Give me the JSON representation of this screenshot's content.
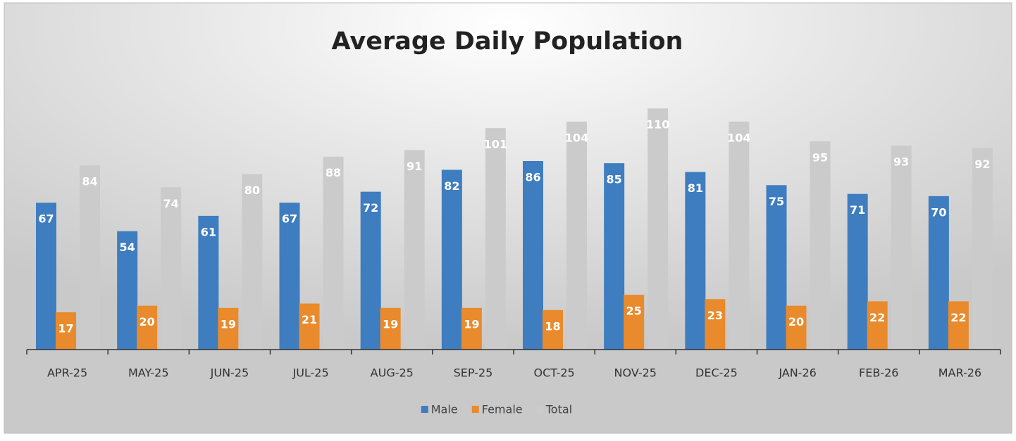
{
  "chart_data": {
    "type": "bar",
    "title": "Average Daily Population",
    "categories": [
      "APR-25",
      "MAY-25",
      "JUN-25",
      "JUL-25",
      "AUG-25",
      "SEP-25",
      "OCT-25",
      "NOV-25",
      "DEC-25",
      "JAN-26",
      "FEB-26",
      "MAR-26"
    ],
    "series": [
      {
        "name": "Male",
        "color": "#3e7dbf",
        "values": [
          67,
          54,
          61,
          67,
          72,
          82,
          86,
          85,
          81,
          75,
          71,
          70
        ]
      },
      {
        "name": "Female",
        "color": "#e98a2c",
        "values": [
          17,
          20,
          19,
          21,
          19,
          19,
          18,
          25,
          23,
          20,
          22,
          22
        ]
      },
      {
        "name": "Total",
        "color": "#cbcbcb",
        "values": [
          84,
          74,
          80,
          88,
          91,
          101,
          104,
          110,
          104,
          95,
          93,
          92
        ]
      }
    ],
    "ylim": [
      0,
      120
    ],
    "legend": "bottom"
  }
}
